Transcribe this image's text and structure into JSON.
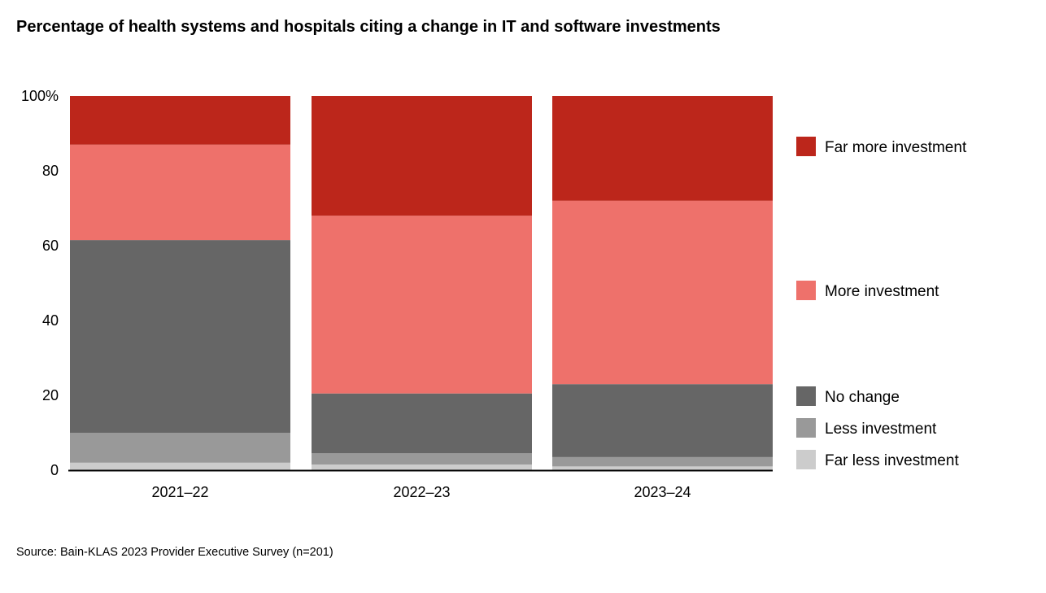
{
  "chart_data": {
    "type": "bar",
    "stacked": true,
    "title": "Percentage of health systems and hospitals citing a change in IT and software investments",
    "categories": [
      "2021–22",
      "2022–23",
      "2023–24"
    ],
    "y_ticks": [
      "0",
      "20",
      "40",
      "60",
      "80",
      "100%"
    ],
    "y_tick_values": [
      0,
      20,
      40,
      60,
      80,
      100
    ],
    "ylim": [
      0,
      100
    ],
    "xlabel": "",
    "ylabel": "",
    "legend_position": "right",
    "series": [
      {
        "name": "Far less investment",
        "color": "#cccccc",
        "values": [
          2,
          1.5,
          1
        ]
      },
      {
        "name": "Less investment",
        "color": "#999999",
        "values": [
          8,
          3,
          2.5
        ]
      },
      {
        "name": "No change",
        "color": "#666666",
        "values": [
          51.5,
          16,
          19.5
        ]
      },
      {
        "name": "More investment",
        "color": "#ee716b",
        "values": [
          25.5,
          47.5,
          49
        ]
      },
      {
        "name": "Far more investment",
        "color": "#bc261b",
        "values": [
          13,
          32,
          28
        ]
      }
    ],
    "source": "Source: Bain-KLAS 2023 Provider Executive Survey (n=201)"
  }
}
